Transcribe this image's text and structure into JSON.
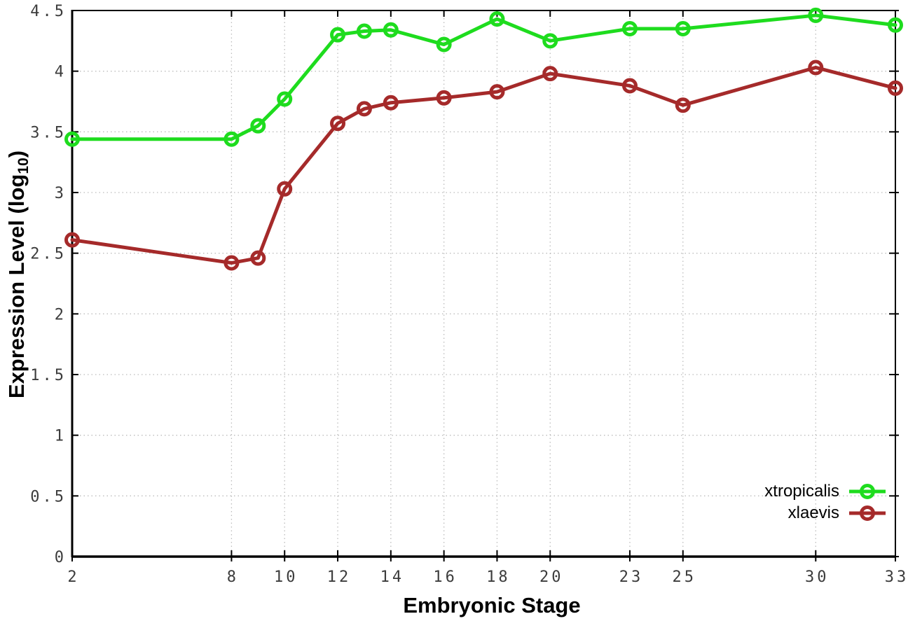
{
  "chart_data": {
    "type": "line",
    "title": "",
    "xlabel": "Embryonic Stage",
    "ylabel_prefix": "Expression Level (log",
    "ylabel_sub": "10",
    "ylabel_suffix": ")",
    "x": [
      2,
      8,
      9,
      10,
      12,
      13,
      14,
      16,
      18,
      20,
      23,
      25,
      30,
      33
    ],
    "series": [
      {
        "name": "xtropicalis",
        "color": "#1edc1e",
        "values": [
          3.44,
          3.44,
          3.55,
          3.77,
          4.3,
          4.33,
          4.34,
          4.22,
          4.43,
          4.25,
          4.35,
          4.35,
          4.46,
          4.38
        ]
      },
      {
        "name": "xlaevis",
        "color": "#a52a2a",
        "values": [
          2.61,
          2.42,
          2.46,
          3.03,
          3.57,
          3.69,
          3.74,
          3.78,
          3.83,
          3.98,
          3.88,
          3.72,
          4.03,
          3.86
        ]
      }
    ],
    "xlim": [
      2,
      33
    ],
    "ylim": [
      0,
      4.5
    ],
    "x_ticks": [
      2,
      8,
      10,
      12,
      14,
      16,
      18,
      20,
      23,
      25,
      30,
      33
    ],
    "x_tick_labels": [
      "2",
      "8",
      "10",
      "12",
      "14",
      "16",
      "18",
      "20",
      "23",
      "25",
      "30",
      "33"
    ],
    "y_ticks": [
      0,
      0.5,
      1,
      1.5,
      2,
      2.5,
      3,
      3.5,
      4,
      4.5
    ],
    "y_tick_labels": [
      "0",
      "0.5",
      "1",
      "1.5",
      "2",
      "2.5",
      "3",
      "3.5",
      "4",
      "4.5"
    ],
    "grid": true,
    "grid_style": "dotted",
    "legend_position": "bottom-right",
    "marker": "open-circle",
    "colors": {
      "grid": "#bcbcbc",
      "axis": "#000000",
      "tick_text": "#3c3c3c",
      "background": "#ffffff"
    }
  }
}
